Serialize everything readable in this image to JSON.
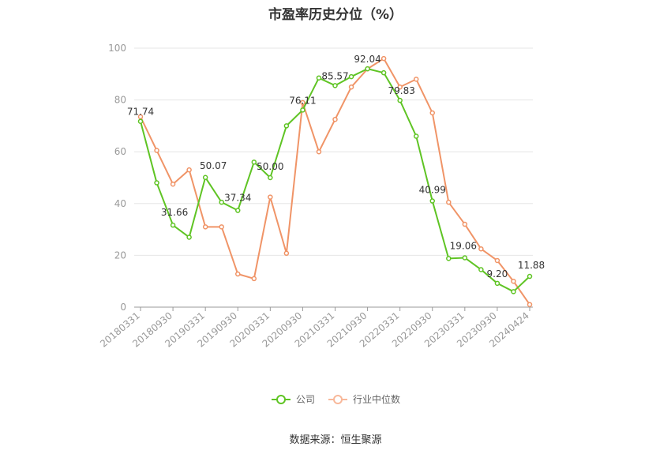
{
  "chart_data": {
    "type": "line",
    "title": "市盈率历史分位（%）",
    "source": "数据来源：恒生聚源",
    "ylim": [
      0,
      100
    ],
    "yticks": [
      0,
      20,
      40,
      60,
      80,
      100
    ],
    "grid": true,
    "legend_position": "bottom",
    "x_tick_labels": [
      "20180331",
      "20180930",
      "20190331",
      "20190930",
      "20200331",
      "20200930",
      "20210331",
      "20210930",
      "20220331",
      "20220930",
      "20230331",
      "20230930",
      "20240424"
    ],
    "series": [
      {
        "name": "公司",
        "color": "#5fc424",
        "values": [
          71.74,
          48.0,
          31.66,
          27.0,
          50.07,
          40.5,
          37.34,
          56.0,
          50.0,
          70.0,
          76.11,
          88.5,
          85.57,
          89.0,
          92.04,
          90.5,
          79.83,
          66.0,
          40.99,
          18.8,
          19.06,
          14.5,
          9.2,
          6.0,
          11.88
        ]
      },
      {
        "name": "行业中位数",
        "color": "#f09467",
        "values": [
          73.5,
          60.5,
          47.5,
          53.0,
          31.0,
          31.0,
          12.8,
          11.0,
          42.5,
          20.8,
          79.0,
          60.0,
          72.5,
          85.0,
          92.0,
          96.0,
          85.0,
          88.0,
          75.0,
          40.5,
          32.0,
          22.5,
          18.0,
          10.0,
          1.0
        ]
      }
    ],
    "data_labels": [
      {
        "series": 0,
        "index": 0,
        "text": "71.74"
      },
      {
        "series": 0,
        "index": 2,
        "text": "31.66"
      },
      {
        "series": 0,
        "index": 4,
        "text": "50.07"
      },
      {
        "series": 0,
        "index": 6,
        "text": "37.34"
      },
      {
        "series": 0,
        "index": 8,
        "text": "50.00"
      },
      {
        "series": 0,
        "index": 10,
        "text": "76.11"
      },
      {
        "series": 0,
        "index": 12,
        "text": "85.57"
      },
      {
        "series": 0,
        "index": 14,
        "text": "92.04"
      },
      {
        "series": 0,
        "index": 16,
        "text": "79.83"
      },
      {
        "series": 0,
        "index": 18,
        "text": "40.99"
      },
      {
        "series": 0,
        "index": 20,
        "text": "19.06"
      },
      {
        "series": 0,
        "index": 22,
        "text": "9.20"
      },
      {
        "series": 0,
        "index": 24,
        "text": "11.88"
      }
    ]
  }
}
